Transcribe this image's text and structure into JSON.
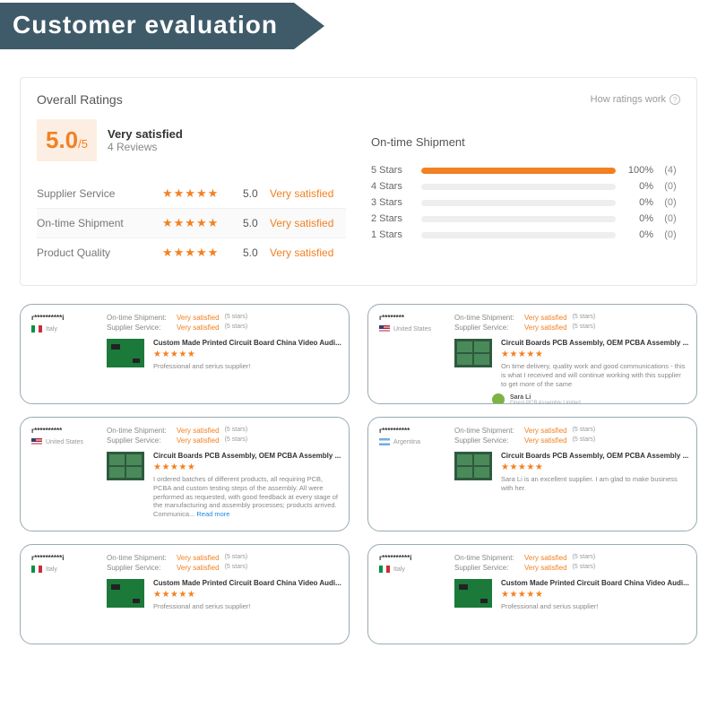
{
  "banner": {
    "title": "Customer evaluation",
    "bg": "#3f5b6a",
    "fg": "#ffffff"
  },
  "panel": {
    "title": "Overall Ratings",
    "how_link": "How ratings work",
    "score": {
      "value": "5.0",
      "of": "/5",
      "status": "Very satisfied",
      "reviews": "4 Reviews"
    },
    "factors": [
      {
        "label": "Supplier Service",
        "score": "5.0",
        "status": "Very satisfied",
        "active": false
      },
      {
        "label": "On-time Shipment",
        "score": "5.0",
        "status": "Very satisfied",
        "active": true
      },
      {
        "label": "Product Quality",
        "score": "5.0",
        "status": "Very satisfied",
        "active": false
      }
    ],
    "dist": {
      "title": "On-time Shipment",
      "rows": [
        {
          "label": "5  Stars",
          "pct": "100%",
          "fill": 100,
          "count": "(4)"
        },
        {
          "label": "4  Stars",
          "pct": "0%",
          "fill": 0,
          "count": "(0)"
        },
        {
          "label": "3  Stars",
          "pct": "0%",
          "fill": 0,
          "count": "(0)"
        },
        {
          "label": "2  Stars",
          "pct": "0%",
          "fill": 0,
          "count": "(0)"
        },
        {
          "label": "1  Stars",
          "pct": "0%",
          "fill": 0,
          "count": "(0)"
        }
      ]
    }
  },
  "colors": {
    "accent": "#f28122",
    "accent_bg": "#fdeee3",
    "bar_bg": "#eeeeee",
    "border": "#e6e6e6",
    "card_border": "#9aaab3"
  },
  "meta_labels": {
    "ontime": "On-time Shipment:",
    "service": "Supplier Service:"
  },
  "meta_value": "Very satisfied",
  "meta_paren": "(5 stars)",
  "stars5": "★★★★★",
  "reviews": [
    {
      "uname": "r**********i",
      "country": "Italy",
      "flag": "it",
      "thumb": "a",
      "ptitle": "Custom Made Printed Circuit Board China Video Audi...",
      "text": "Professional and serius supplier!",
      "reply": null,
      "tall": false
    },
    {
      "uname": "r********",
      "country": "United States",
      "flag": "us",
      "thumb": "b",
      "ptitle": "Circuit Boards PCB Assembly, OEM PCBA Assembly ...",
      "text": "On time delivery, quality work and good communications - this is what I received and will continue working with this supplier to get more of the same",
      "reply": {
        "name": "Sara Li",
        "sub": "Finest PCB Assembly Limited"
      },
      "tall": false
    },
    {
      "uname": "r**********",
      "country": "United States",
      "flag": "us",
      "thumb": "b",
      "ptitle": "Circuit Boards PCB Assembly, OEM PCBA Assembly ...",
      "text": "I ordered batches of different products, all requiring PCB, PCBA and custom testing steps of the assembly. All were performed as requested, with good feedback at every stage of the manufacturing and assembly processes; products arrived. Communica...",
      "read_more": "Read more",
      "reply": null,
      "tall": true
    },
    {
      "uname": "r**********",
      "country": "Argentina",
      "flag": "ar",
      "thumb": "b",
      "ptitle": "Circuit Boards PCB Assembly, OEM PCBA Assembly ...",
      "text": "Sara Li is an excellent supplier. I am glad to make business with her.",
      "reply": null,
      "tall": true
    },
    {
      "uname": "r**********i",
      "country": "Italy",
      "flag": "it",
      "thumb": "a",
      "ptitle": "Custom Made Printed Circuit Board China Video Audi...",
      "text": "Professional and serius supplier!",
      "reply": null,
      "tall": false
    },
    {
      "uname": "r**********i",
      "country": "Italy",
      "flag": "it",
      "thumb": "a",
      "ptitle": "Custom Made Printed Circuit Board China Video Audi...",
      "text": "Professional and serius supplier!",
      "reply": null,
      "tall": false
    }
  ]
}
